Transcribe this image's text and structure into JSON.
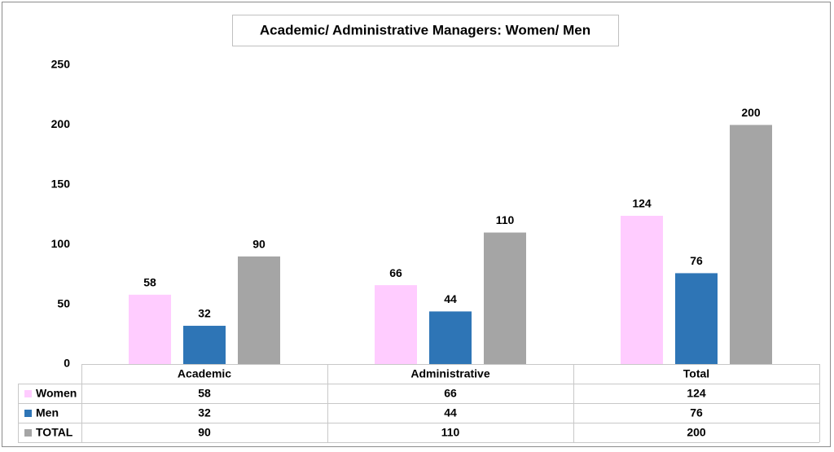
{
  "chart_data": {
    "type": "bar",
    "title": "Academic/ Administrative Managers: Women/ Men",
    "categories": [
      "Academic",
      "Administrative",
      "Total"
    ],
    "series": [
      {
        "name": "Women",
        "color": "#ffccff",
        "values": [
          58,
          66,
          124
        ]
      },
      {
        "name": "Men",
        "color": "#2e75b6",
        "values": [
          32,
          44,
          76
        ]
      },
      {
        "name": "TOTAL",
        "color": "#a5a5a5",
        "values": [
          90,
          110,
          200
        ]
      }
    ],
    "ylim": [
      0,
      250
    ],
    "yticks": [
      0,
      50,
      100,
      150,
      200,
      250
    ],
    "data_table": true
  }
}
